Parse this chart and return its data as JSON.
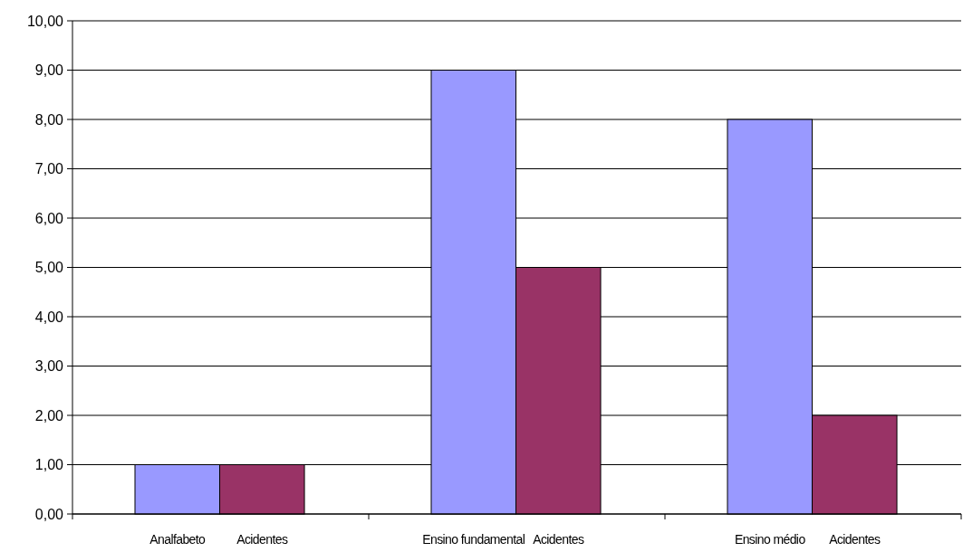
{
  "chart_data": {
    "type": "bar",
    "categories": [
      "Analfabeto",
      "Acidentes",
      "Ensino fundamental",
      "Acidentes",
      "Ensino médio",
      "Acidentes"
    ],
    "values": [
      1,
      1,
      9,
      5,
      8,
      2
    ],
    "colors": [
      "#9999ff",
      "#993366",
      "#9999ff",
      "#993366",
      "#9999ff",
      "#993366"
    ],
    "ylim": [
      0,
      10
    ],
    "yticks": [
      {
        "value": 0,
        "label": "0,00"
      },
      {
        "value": 1,
        "label": "1,00"
      },
      {
        "value": 2,
        "label": "2,00"
      },
      {
        "value": 3,
        "label": "3,00"
      },
      {
        "value": 4,
        "label": "4,00"
      },
      {
        "value": 5,
        "label": "5,00"
      },
      {
        "value": 6,
        "label": "6,00"
      },
      {
        "value": 7,
        "label": "7,00"
      },
      {
        "value": 8,
        "label": "8,00"
      },
      {
        "value": 9,
        "label": "9,00"
      },
      {
        "value": 10,
        "label": "10,00"
      }
    ],
    "grid": "y"
  }
}
